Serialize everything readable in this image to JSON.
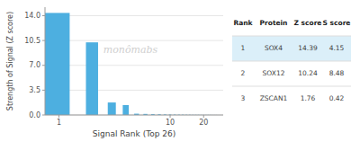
{
  "chart_data": {
    "type": "bar",
    "log": "x",
    "grid": true,
    "color": "#4DAFE0",
    "xlabel": "Signal Rank (Top 26)",
    "ylabel": "Strength of Signal (Z score)",
    "x": [
      1,
      2,
      3,
      4,
      5,
      6,
      7,
      8,
      9,
      10,
      11,
      12,
      13,
      14,
      15,
      16,
      17,
      18,
      19,
      20,
      21,
      22,
      23,
      24,
      25,
      26
    ],
    "values": [
      14.39,
      10.24,
      1.76,
      1.4,
      0.18,
      0.15,
      0.12,
      0.1,
      0.08,
      0.07,
      0.06,
      0.05,
      0.05,
      0.04,
      0.04,
      0.03,
      0.03,
      0.03,
      0.02,
      0.02,
      0.02,
      0.02,
      0.02,
      0.01,
      0.01,
      0.01
    ],
    "xlim": [
      0.75,
      30
    ],
    "xticks": [
      1,
      10,
      20
    ],
    "ylim": [
      0,
      15.2
    ],
    "yticks": [
      {
        "value": 0.0,
        "label": "0.0"
      },
      3.5,
      {
        "value": 7.0,
        "label": "7.0"
      },
      10.5,
      {
        "value": 14.0,
        "label": "14.0"
      }
    ],
    "annotations": [
      "monômabs"
    ],
    "table": {
      "headers": [
        "Rank",
        "Protein",
        "Z score",
        "S score"
      ],
      "rows": [
        [
          "1",
          "SOX4",
          "14.39",
          "4.15"
        ],
        [
          "2",
          "SOX12",
          "10.24",
          "8.48"
        ],
        [
          "3",
          "ZSCAN1",
          "1.76",
          "0.42"
        ]
      ]
    }
  }
}
